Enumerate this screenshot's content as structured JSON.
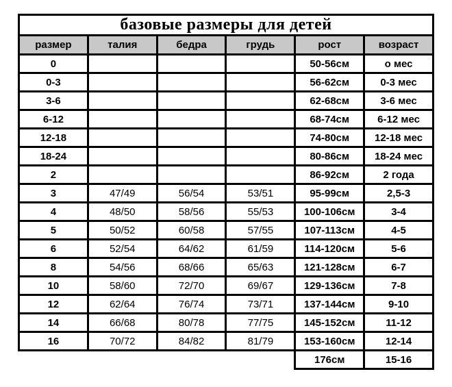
{
  "chart_data": {
    "type": "table",
    "title": "базовые размеры для детей",
    "columns": [
      "размер",
      "талия",
      "бедра",
      "грудь",
      "рост",
      "возраст"
    ],
    "rows": [
      [
        "0",
        "",
        "",
        "",
        "50-56см",
        "о мес"
      ],
      [
        "0-3",
        "",
        "",
        "",
        "56-62см",
        "0-3 мес"
      ],
      [
        "3-6",
        "",
        "",
        "",
        "62-68см",
        "3-6 мес"
      ],
      [
        "6-12",
        "",
        "",
        "",
        "68-74см",
        "6-12 мес"
      ],
      [
        "12-18",
        "",
        "",
        "",
        "74-80см",
        "12-18 мес"
      ],
      [
        "18-24",
        "",
        "",
        "",
        "80-86см",
        "18-24 мес"
      ],
      [
        "2",
        "",
        "",
        "",
        "86-92см",
        "2 года"
      ],
      [
        "3",
        "47/49",
        "56/54",
        "53/51",
        "95-99см",
        "2,5-3"
      ],
      [
        "4",
        "48/50",
        "58/56",
        "55/53",
        "100-106см",
        "3-4"
      ],
      [
        "5",
        "50/52",
        "60/58",
        "57/55",
        "107-113см",
        "4-5"
      ],
      [
        "6",
        "52/54",
        "64/62",
        "61/59",
        "114-120см",
        "5-6"
      ],
      [
        "8",
        "54/56",
        "68/66",
        "65/63",
        "121-128см",
        "6-7"
      ],
      [
        "10",
        "58/60",
        "72/70",
        "69/67",
        "129-136см",
        "7-8"
      ],
      [
        "12",
        "62/64",
        "76/74",
        "73/71",
        "137-144см",
        "9-10"
      ],
      [
        "14",
        "66/68",
        "80/78",
        "77/75",
        "145-152см",
        "11-12"
      ],
      [
        "16",
        "70/72",
        "84/82",
        "81/79",
        "153-160см",
        "12-14"
      ]
    ],
    "extra_row": {
      "height": "176см",
      "age": "15-16"
    },
    "layout_hints": {
      "grid": "on",
      "header_position": "top"
    }
  },
  "colors": {
    "header_bg": "#c8c8c8",
    "border": "#000000",
    "background": "#ffffff",
    "text": "#000000"
  }
}
